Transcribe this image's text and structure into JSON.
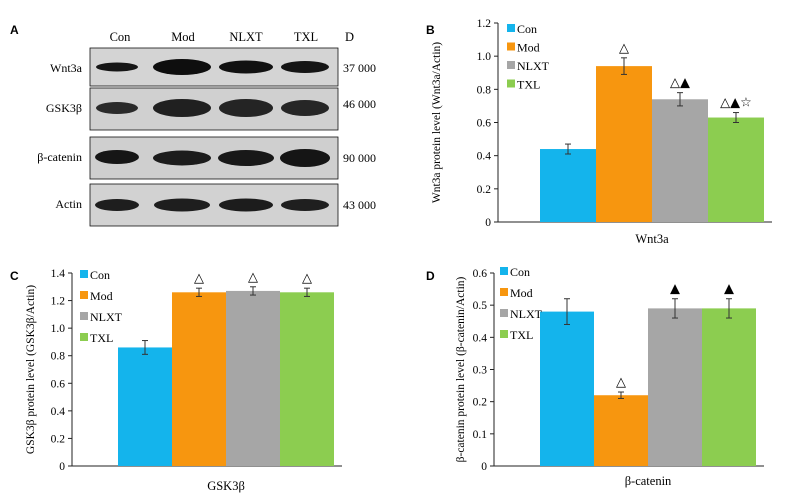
{
  "colors": {
    "Con": "#14b4ec",
    "Mod": "#f7960f",
    "NLXT": "#a6a6a6",
    "TXL": "#8ccd50"
  },
  "blot": {
    "panel_label": "A",
    "lanes": [
      "Con",
      "Mod",
      "NLXT",
      "TXL"
    ],
    "sizes_label": "D",
    "rows": [
      {
        "protein": "Wnt3a",
        "size": "37 000"
      },
      {
        "protein": "GSK3β",
        "size": "46 000"
      },
      {
        "protein": "β-catenin",
        "size": "90 000"
      },
      {
        "protein": "Actin",
        "size": "43 000"
      }
    ]
  },
  "chart_data": [
    {
      "type": "bar",
      "panel_label": "B",
      "categories": [
        "Con",
        "Mod",
        "NLXT",
        "TXL"
      ],
      "values": [
        0.44,
        0.94,
        0.74,
        0.63
      ],
      "errors": [
        0.03,
        0.05,
        0.04,
        0.03
      ],
      "markers": [
        "",
        "△",
        "△▲",
        "△▲☆"
      ],
      "ylabel": "Wnt3a protein level (Wnt3a/Actin)",
      "xlabel": "Wnt3a",
      "ylim": [
        0,
        1.2
      ],
      "yticks": [
        "0",
        "0.2",
        "0.4",
        "0.6",
        "0.8",
        "1.0",
        "1.2"
      ],
      "legend": "top-left",
      "grid": false
    },
    {
      "type": "bar",
      "panel_label": "C",
      "categories": [
        "Con",
        "Mod",
        "NLXT",
        "TXL"
      ],
      "values": [
        0.86,
        1.26,
        1.27,
        1.26
      ],
      "errors": [
        0.05,
        0.03,
        0.03,
        0.03
      ],
      "markers": [
        "",
        "△",
        "△",
        "△"
      ],
      "ylabel": "GSK3β protein level (GSK3β/Actin)",
      "xlabel": "GSK3β",
      "ylim": [
        0,
        1.4
      ],
      "yticks": [
        "0",
        "0.2",
        "0.4",
        "0.6",
        "0.8",
        "1.0",
        "1.2",
        "1.4"
      ],
      "legend": "top-left",
      "grid": false
    },
    {
      "type": "bar",
      "panel_label": "D",
      "categories": [
        "Con",
        "Mod",
        "NLXT",
        "TXL"
      ],
      "values": [
        0.48,
        0.22,
        0.49,
        0.49
      ],
      "errors": [
        0.04,
        0.01,
        0.03,
        0.03
      ],
      "markers": [
        "",
        "△",
        "▲",
        "▲"
      ],
      "ylabel": "β-catenin protein level (β-catenin/Actin)",
      "xlabel": "β-catenin",
      "ylim": [
        0,
        0.6
      ],
      "yticks": [
        "0",
        "0.1",
        "0.2",
        "0.3",
        "0.4",
        "0.5",
        "0.6"
      ],
      "legend": "top-left",
      "grid": false
    }
  ]
}
